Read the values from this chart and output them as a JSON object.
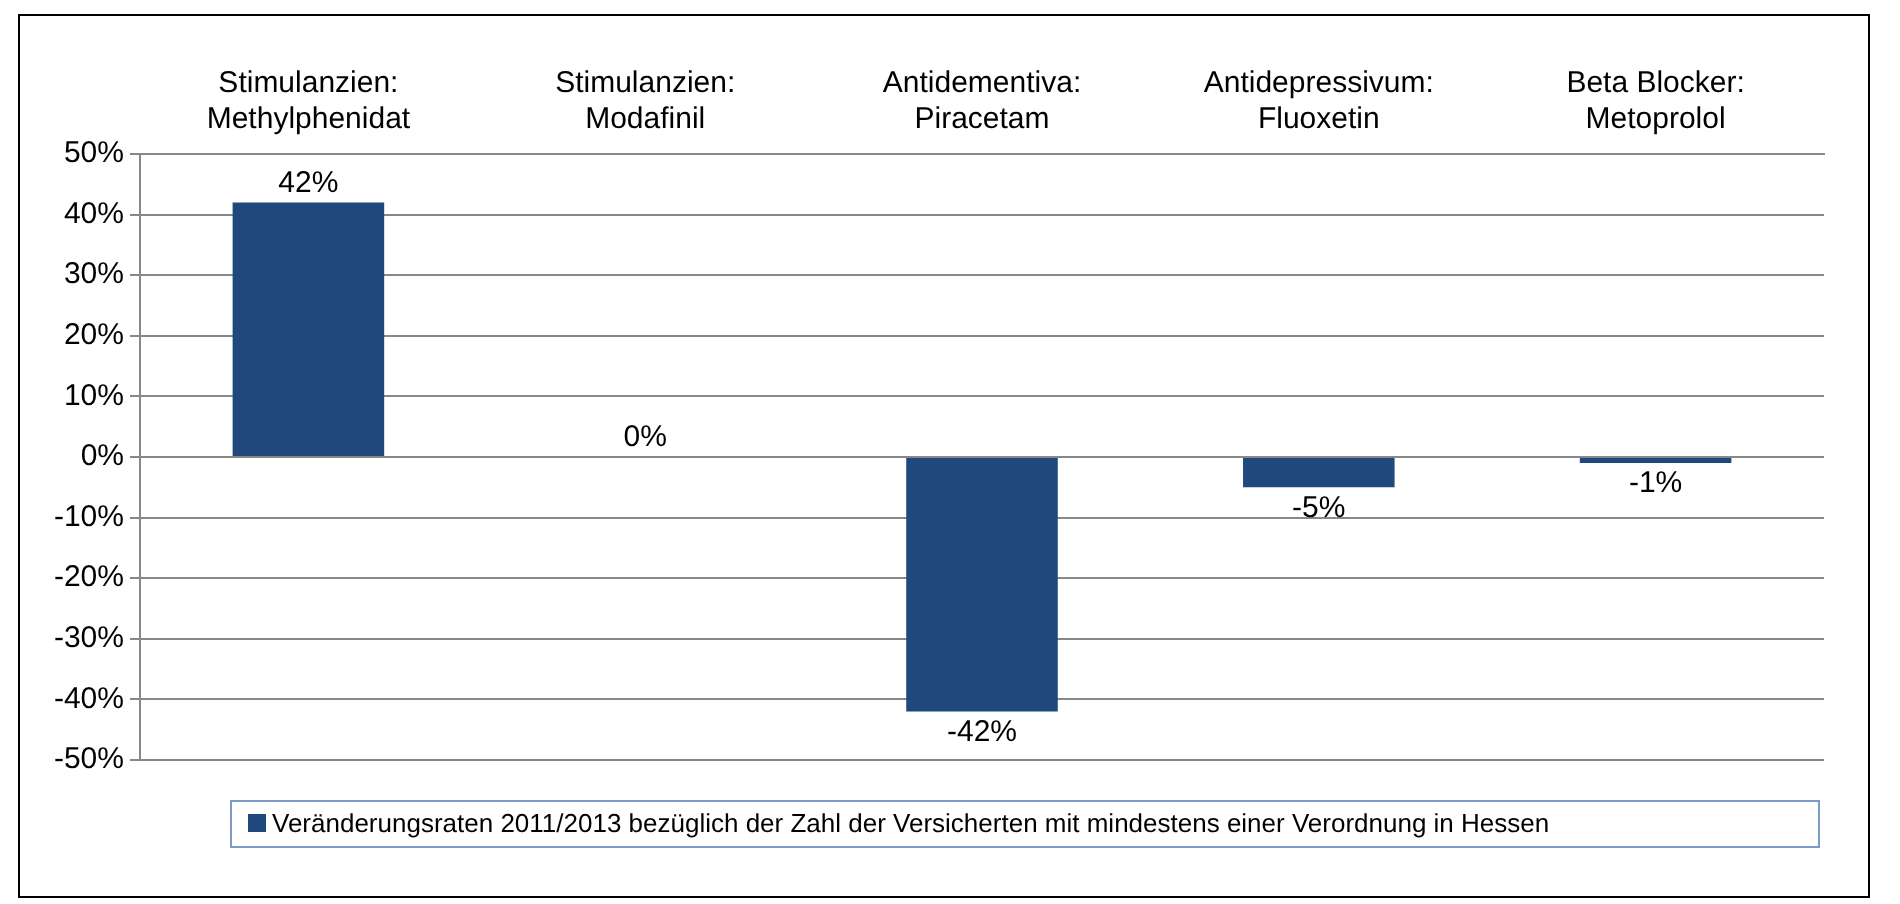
{
  "chart_data": {
    "type": "bar",
    "categories": [
      "Stimulanzien:\nMethylphenidat",
      "Stimulanzien:\nModafinil",
      "Antidementiva:\nPiracetam",
      "Antidepressivum:\nFluoxetin",
      "Beta Blocker:\nMetoprolol"
    ],
    "series": [
      {
        "name": "Veränderungsraten 2011/2013 bezüglich der Zahl der Versicherten mit mindestens einer Verordnung in Hessen",
        "color": "#1f497d",
        "values": [
          42,
          0,
          -42,
          -5,
          -1
        ],
        "value_labels": [
          "42%",
          "0%",
          "-42%",
          "-5%",
          "-1%"
        ]
      }
    ],
    "ylim": [
      -50,
      50
    ],
    "yticks": [
      {
        "value": -50,
        "label": "-50%"
      },
      {
        "value": -40,
        "label": "-40%"
      },
      {
        "value": -30,
        "label": "-30%"
      },
      {
        "value": -20,
        "label": "-20%"
      },
      {
        "value": -10,
        "label": "-10%"
      },
      {
        "value": 0,
        "label": "0%"
      },
      {
        "value": 10,
        "label": "10%"
      },
      {
        "value": 20,
        "label": "20%"
      },
      {
        "value": 30,
        "label": "30%"
      },
      {
        "value": 40,
        "label": "40%"
      },
      {
        "value": 50,
        "label": "50%"
      }
    ],
    "grid": "y",
    "legend": "bottom"
  }
}
